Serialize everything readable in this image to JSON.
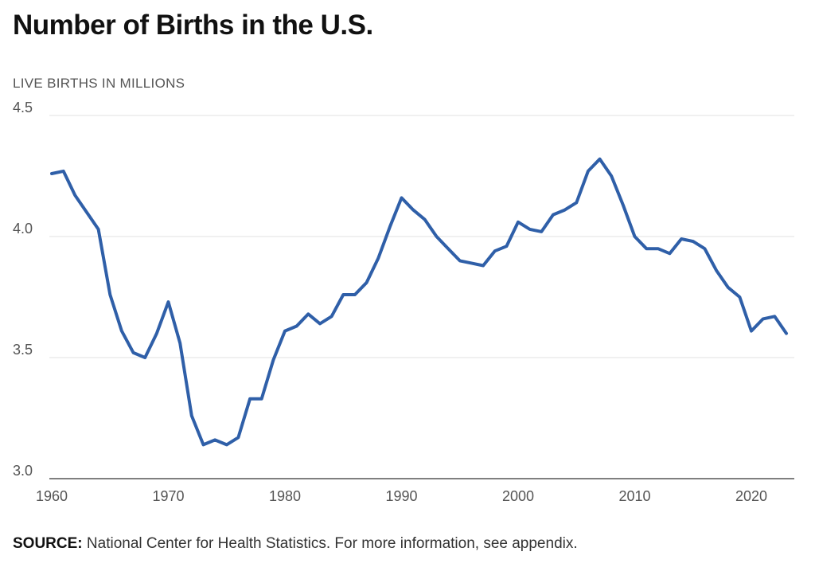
{
  "chart_data": {
    "type": "line",
    "title": "Number of Births in the U.S.",
    "ylabel": "LIVE BIRTHS IN MILLIONS",
    "xlabel": "",
    "xlim": [
      1960,
      2023
    ],
    "ylim": [
      3.0,
      4.5
    ],
    "x_ticks": [
      1960,
      1970,
      1980,
      1990,
      2000,
      2010,
      2020
    ],
    "y_ticks": [
      3.0,
      3.5,
      4.0,
      4.5
    ],
    "y_tick_labels": [
      "3.0",
      "3.5",
      "4.0",
      "4.5"
    ],
    "grid": true,
    "series": [
      {
        "color": "#2f5fa8",
        "x": [
          1960,
          1961,
          1962,
          1963,
          1964,
          1965,
          1966,
          1967,
          1968,
          1969,
          1970,
          1971,
          1972,
          1973,
          1974,
          1975,
          1976,
          1977,
          1978,
          1979,
          1980,
          1981,
          1982,
          1983,
          1984,
          1985,
          1986,
          1987,
          1988,
          1989,
          1990,
          1991,
          1992,
          1993,
          1994,
          1995,
          1996,
          1997,
          1998,
          1999,
          2000,
          2001,
          2002,
          2003,
          2004,
          2005,
          2006,
          2007,
          2008,
          2009,
          2010,
          2011,
          2012,
          2013,
          2014,
          2015,
          2016,
          2017,
          2018,
          2019,
          2020,
          2021,
          2022,
          2023
        ],
        "values": [
          4.26,
          4.27,
          4.17,
          4.1,
          4.03,
          3.76,
          3.61,
          3.52,
          3.5,
          3.6,
          3.73,
          3.56,
          3.26,
          3.14,
          3.16,
          3.14,
          3.17,
          3.33,
          3.33,
          3.49,
          3.61,
          3.63,
          3.68,
          3.64,
          3.67,
          3.76,
          3.76,
          3.81,
          3.91,
          4.04,
          4.16,
          4.11,
          4.07,
          4.0,
          3.95,
          3.9,
          3.89,
          3.88,
          3.94,
          3.96,
          4.06,
          4.03,
          4.02,
          4.09,
          4.11,
          4.14,
          4.27,
          4.32,
          4.25,
          4.13,
          4.0,
          3.95,
          3.95,
          3.93,
          3.99,
          3.98,
          3.95,
          3.86,
          3.79,
          3.75,
          3.61,
          3.66,
          3.67,
          3.6
        ]
      }
    ]
  },
  "source": {
    "label": "SOURCE:",
    "text": "National Center for Health Statistics. For more information, see appendix."
  }
}
